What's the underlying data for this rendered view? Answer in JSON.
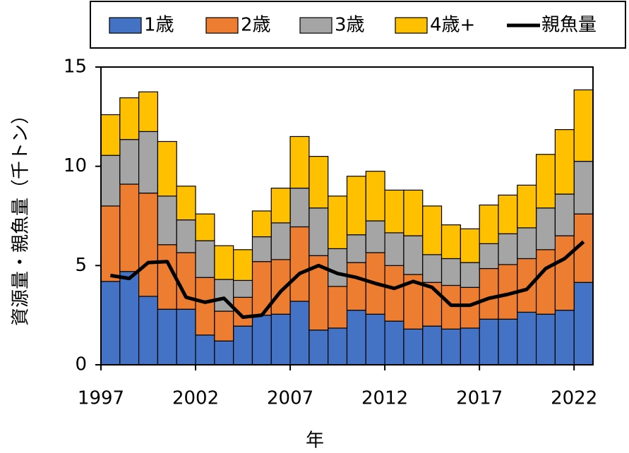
{
  "chart_data": {
    "type": "bar",
    "x": [
      1997,
      1998,
      1999,
      2000,
      2001,
      2002,
      2003,
      2004,
      2005,
      2006,
      2007,
      2008,
      2009,
      2010,
      2011,
      2012,
      2013,
      2014,
      2015,
      2016,
      2017,
      2018,
      2019,
      2020,
      2021,
      2022
    ],
    "series": [
      {
        "name": "1歳",
        "color": "#4472c4",
        "type": "bar",
        "values": [
          4.2,
          4.7,
          3.45,
          2.8,
          2.8,
          1.5,
          1.2,
          1.95,
          2.5,
          2.55,
          3.2,
          1.75,
          1.85,
          2.75,
          2.55,
          2.2,
          1.8,
          1.95,
          1.8,
          1.85,
          2.3,
          2.3,
          2.65,
          2.55,
          2.75,
          4.15
        ]
      },
      {
        "name": "2歳",
        "color": "#ed7d31",
        "type": "bar",
        "values": [
          3.8,
          4.4,
          5.2,
          3.25,
          2.85,
          2.9,
          1.5,
          1.45,
          2.7,
          2.75,
          3.75,
          3.75,
          2.1,
          2.4,
          3.1,
          2.8,
          2.75,
          2.2,
          2.2,
          2.05,
          2.55,
          2.75,
          2.7,
          3.25,
          3.75,
          3.45
        ]
      },
      {
        "name": "3歳",
        "color": "#a5a5a5",
        "type": "bar",
        "values": [
          2.55,
          2.25,
          3.1,
          2.45,
          1.65,
          1.85,
          1.6,
          0.85,
          1.25,
          1.85,
          1.95,
          2.4,
          1.9,
          1.4,
          1.6,
          1.65,
          1.95,
          1.4,
          1.35,
          1.25,
          1.25,
          1.55,
          1.55,
          2.1,
          2.1,
          2.65
        ]
      },
      {
        "name": "4歳+",
        "color": "#ffc000",
        "type": "bar",
        "values": [
          2.05,
          2.1,
          2.0,
          2.75,
          1.7,
          1.35,
          1.7,
          1.55,
          1.3,
          1.75,
          2.6,
          2.6,
          2.65,
          2.95,
          2.5,
          2.15,
          2.3,
          2.45,
          1.7,
          1.7,
          1.95,
          1.95,
          2.15,
          2.7,
          3.25,
          3.6
        ]
      },
      {
        "name": "親魚量",
        "color": "#000000",
        "type": "line",
        "values": [
          4.5,
          4.35,
          5.15,
          5.2,
          3.4,
          3.15,
          3.35,
          2.4,
          2.5,
          3.7,
          4.6,
          5.0,
          4.6,
          4.4,
          4.1,
          3.85,
          4.2,
          3.9,
          3.0,
          3.0,
          3.35,
          3.55,
          3.8,
          4.85,
          5.35,
          6.2
        ]
      }
    ],
    "xlabel": "年",
    "ylabel": "資源量・親魚量（千トン）",
    "xlim": [
      1997,
      2023
    ],
    "xticks": [
      1997,
      2002,
      2007,
      2012,
      2017,
      2022
    ],
    "ylim": [
      0,
      15
    ],
    "yticks": [
      0,
      5,
      10,
      15
    ]
  }
}
